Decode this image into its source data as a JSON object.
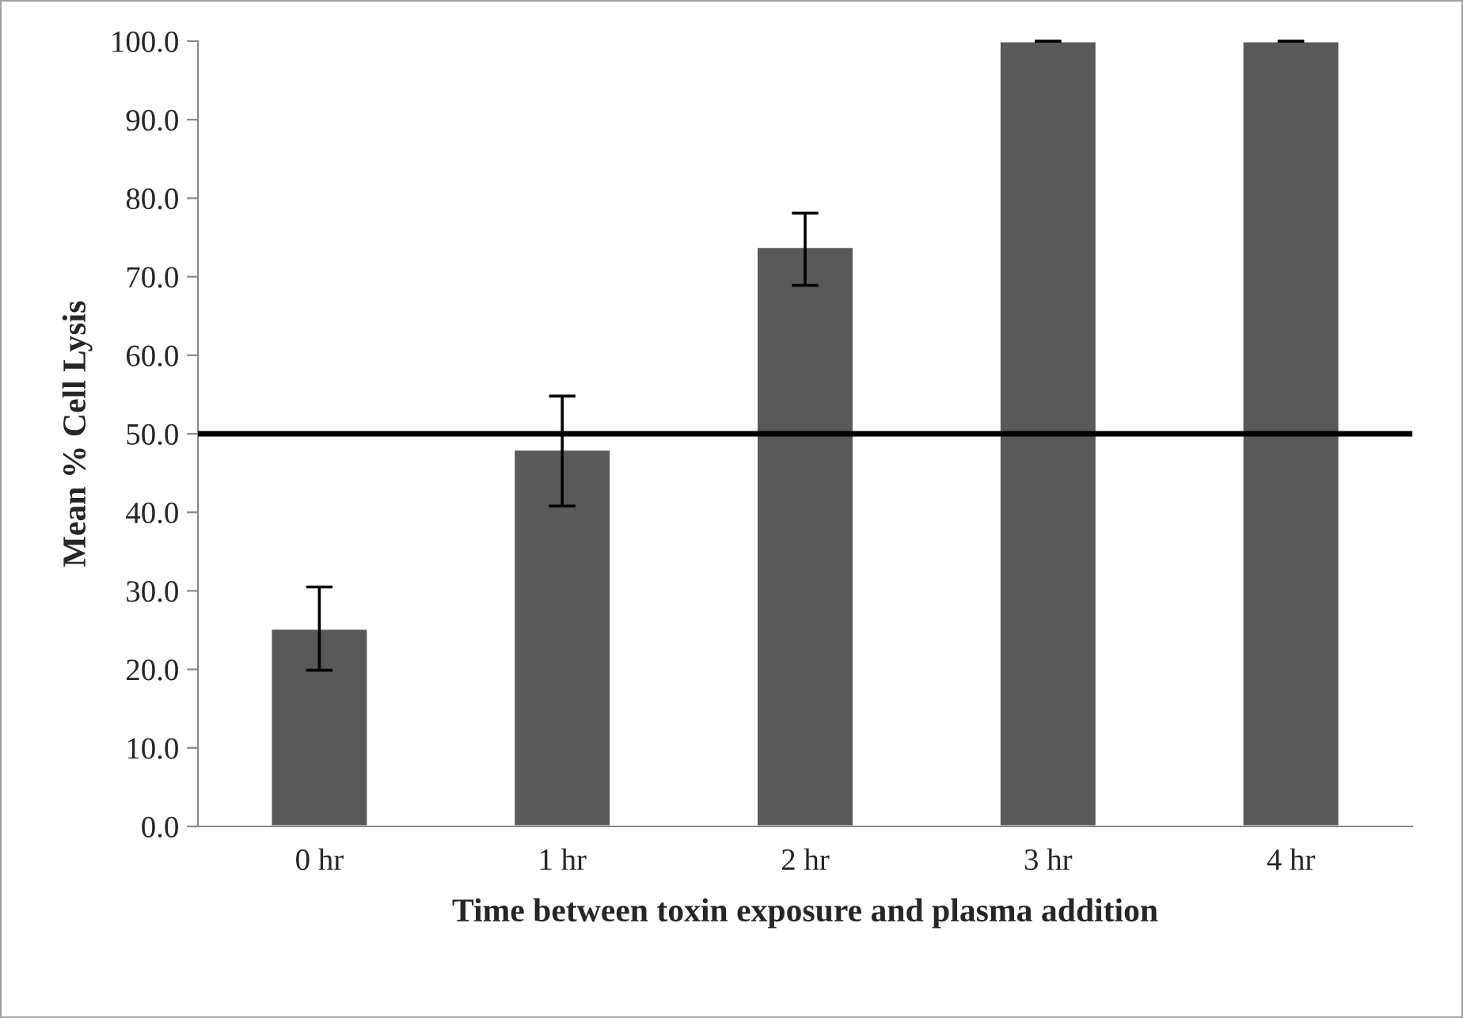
{
  "chart_data": {
    "type": "bar",
    "xlabel": "Time between toxin exposure and plasma addition",
    "ylabel": "Mean % Cell Lysis",
    "categories": [
      "0 hr",
      "1 hr",
      "2 hr",
      "3 hr",
      "4 hr"
    ],
    "values": [
      25.2,
      48.0,
      73.8,
      100.0,
      100.0
    ],
    "errors": [
      [
        19.9,
        30.5
      ],
      [
        40.8,
        54.8
      ],
      [
        68.9,
        78.1
      ],
      0,
      0
    ],
    "color": "#595959",
    "ylim": [
      0,
      100
    ],
    "yticks": [
      {
        "value": 0,
        "label": "0.0"
      },
      {
        "value": 10,
        "label": "10.0"
      },
      {
        "value": 20,
        "label": "20.0"
      },
      {
        "value": 30,
        "label": "30.0"
      },
      {
        "value": 40,
        "label": "40.0"
      },
      {
        "value": 50,
        "label": "50.0"
      },
      {
        "value": 60,
        "label": "60.0"
      },
      {
        "value": 70,
        "label": "70.0"
      },
      {
        "value": 80,
        "label": "80.0"
      },
      {
        "value": 90,
        "label": "90.0"
      },
      {
        "value": 100,
        "label": "100.0"
      }
    ],
    "ref_lines": [
      {
        "axis": "y",
        "value": 50,
        "label": null,
        "color": "#000000",
        "line_style": "solid"
      }
    ],
    "grid": false,
    "legend": false
  }
}
